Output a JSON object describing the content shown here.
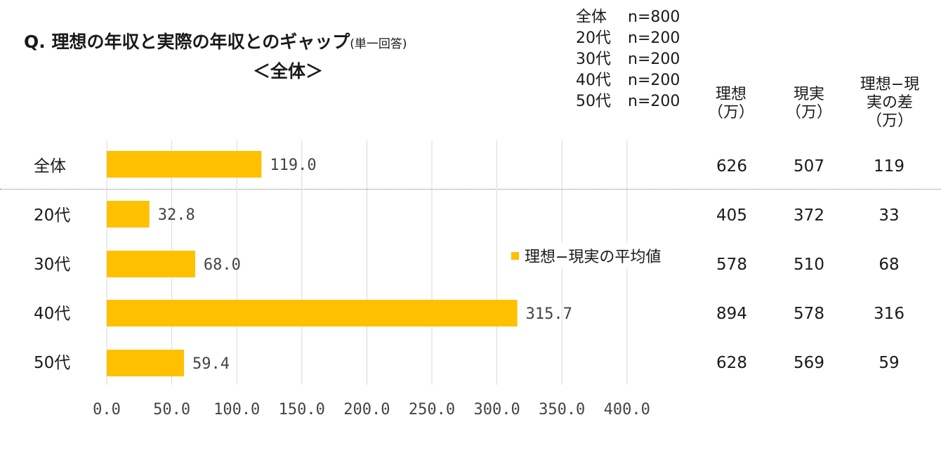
{
  "title": {
    "main": "Q. 理想の年収と実際の年収とのギャップ",
    "note": "(単一回答)",
    "subtitle": "＜全体＞"
  },
  "samples": [
    {
      "group": "全体",
      "n": "n=800"
    },
    {
      "group": "20代",
      "n": "n=200"
    },
    {
      "group": "30代",
      "n": "n=200"
    },
    {
      "group": "40代",
      "n": "n=200"
    },
    {
      "group": "50代",
      "n": "n=200"
    }
  ],
  "table": {
    "headers": [
      [
        "理想",
        "（万）"
      ],
      [
        "現実",
        "（万）"
      ],
      [
        "理想−現",
        "実の差",
        "（万）"
      ]
    ],
    "rows": [
      {
        "label": "全体",
        "ideal": "626",
        "actual": "507",
        "diff": "119"
      },
      {
        "label": "20代",
        "ideal": "405",
        "actual": "372",
        "diff": "33"
      },
      {
        "label": "30代",
        "ideal": "578",
        "actual": "510",
        "diff": "68"
      },
      {
        "label": "40代",
        "ideal": "894",
        "actual": "578",
        "diff": "316"
      },
      {
        "label": "50代",
        "ideal": "628",
        "actual": "569",
        "diff": "59"
      }
    ]
  },
  "chart_data": {
    "type": "bar",
    "orientation": "horizontal",
    "categories": [
      "全体",
      "20代",
      "30代",
      "40代",
      "50代"
    ],
    "series": [
      {
        "name": "理想−現実の平均値",
        "values": [
          119.0,
          32.8,
          68.0,
          315.7,
          59.4
        ],
        "labels": [
          "119.0",
          "32.8",
          "68.0",
          "315.7",
          "59.4"
        ]
      }
    ],
    "xlim": [
      0,
      400
    ],
    "xticks": [
      "0.0",
      "50.0",
      "100.0",
      "150.0",
      "200.0",
      "250.0",
      "300.0",
      "350.0",
      "400.0"
    ],
    "xtick_values": [
      0,
      50,
      100,
      150,
      200,
      250,
      300,
      350,
      400
    ],
    "grid": true,
    "legend": "right",
    "colors": {
      "bar": "#FFC000",
      "grid": "#d9d9d9"
    }
  }
}
